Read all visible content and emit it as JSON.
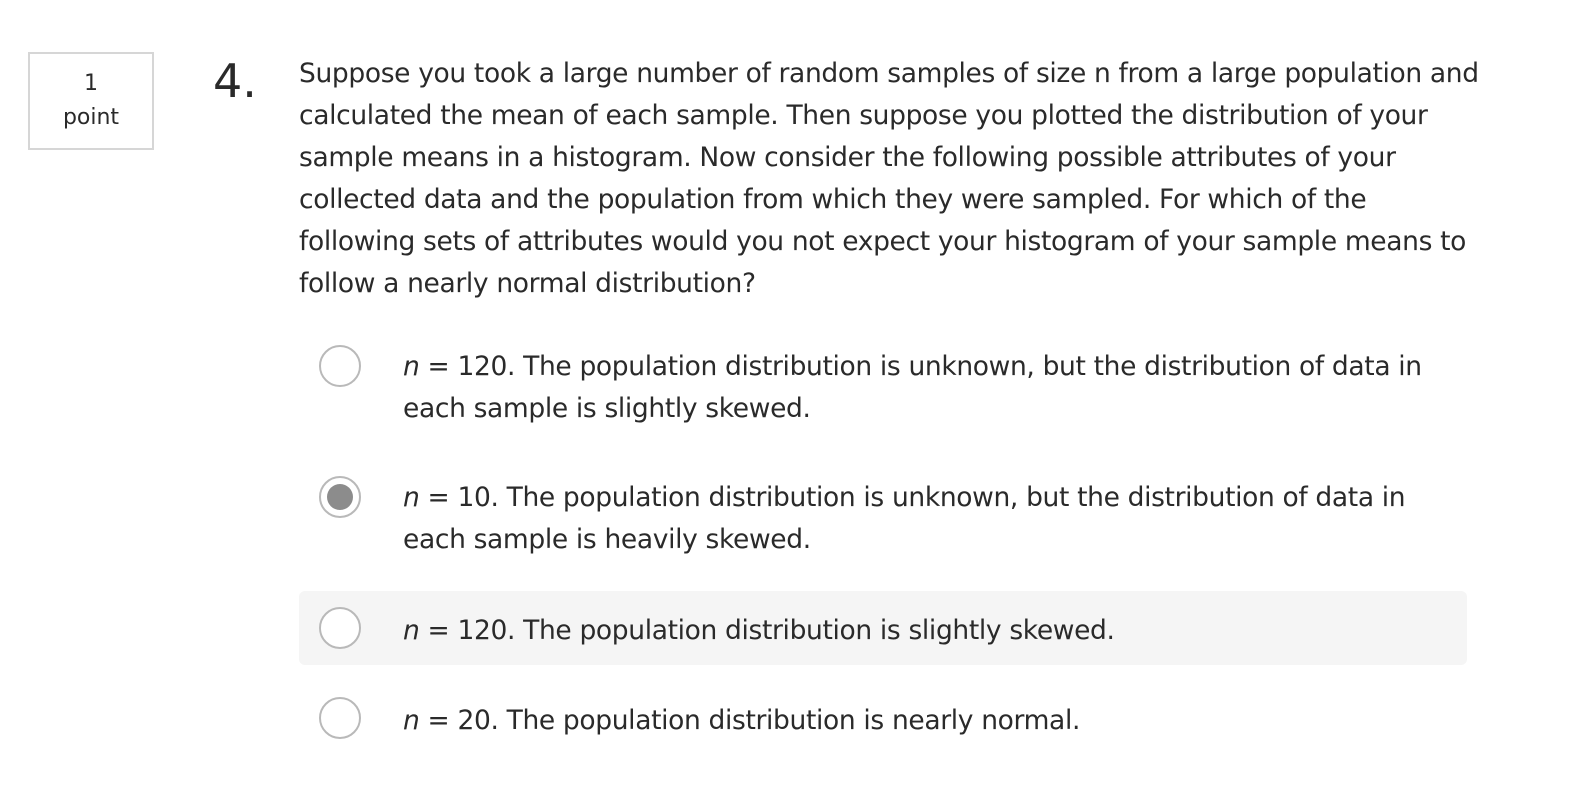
{
  "points": {
    "value": "1",
    "label": "point"
  },
  "question": {
    "number": "4.",
    "text": "Suppose you took a large number of random samples of size n from a large population and calculated the mean of each sample. Then suppose you plotted the distribution of your sample means in a histogram. Now consider the following possible attributes of your collected data and the population from which they were sampled. For which of the following sets of attributes would you not expect your histogram of your sample means to follow a nearly normal distribution?"
  },
  "options": [
    {
      "variable": "n",
      "text": " = 120. The population distribution is unknown, but the distribution of data in each sample is slightly skewed.",
      "selected": false
    },
    {
      "variable": "n",
      "text": " = 10. The population distribution is unknown, but the distribution of data in each sample is heavily skewed.",
      "selected": true
    },
    {
      "variable": "n",
      "text": " = 120. The population distribution is slightly skewed.",
      "selected": false
    },
    {
      "variable": "n",
      "text": " = 20. The population distribution is nearly normal.",
      "selected": false
    }
  ],
  "colors": {
    "text": "#2a2a2a",
    "radio_border": "#b9b9b9",
    "radio_fill": "#8c8c8c",
    "hover_background": "#f5f5f5",
    "box_border": "#d6d6d6"
  }
}
